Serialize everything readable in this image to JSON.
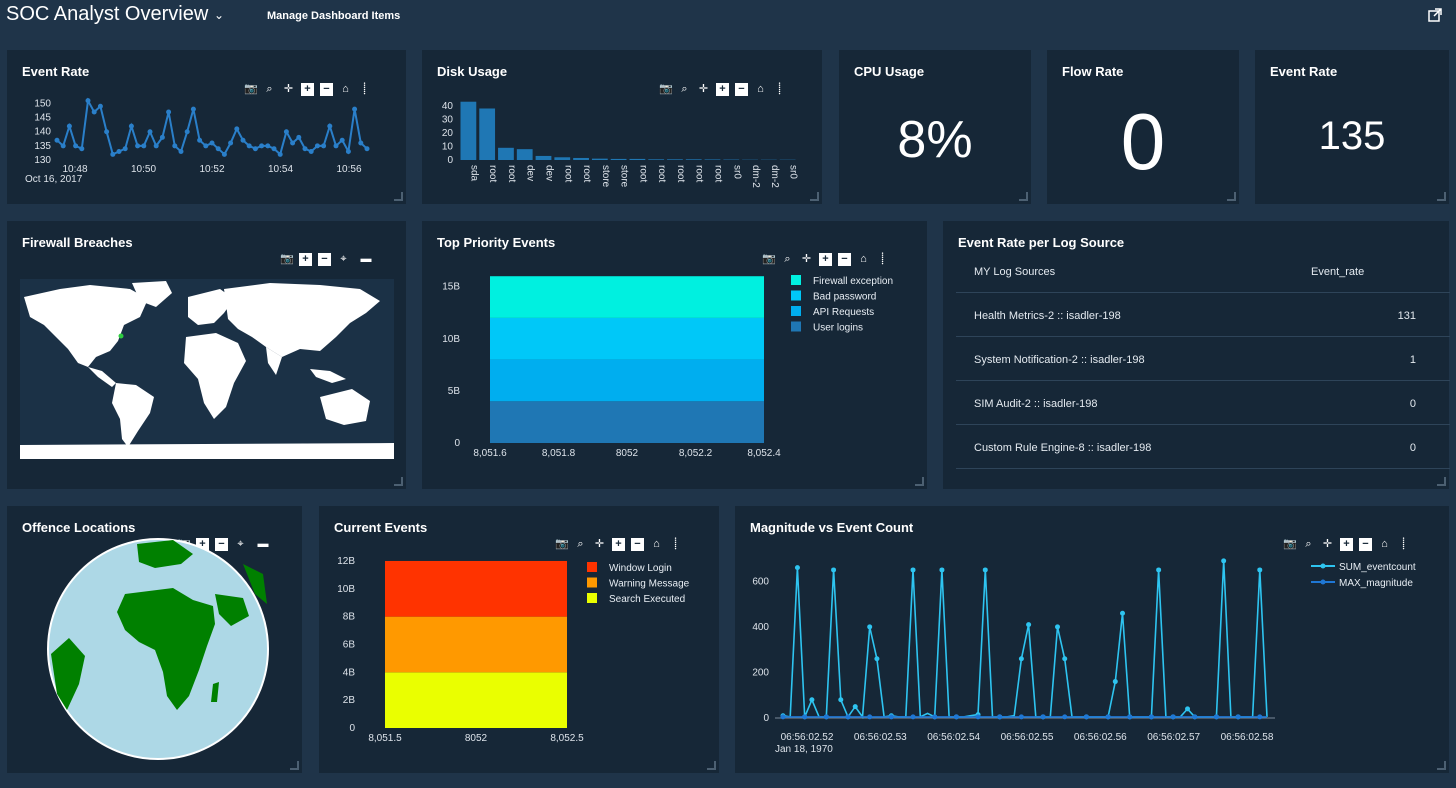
{
  "header": {
    "title": "SOC Analyst Overview",
    "manage_label": "Manage Dashboard Items"
  },
  "panels": {
    "event_rate": {
      "title": "Event Rate",
      "date_label": "Oct 16, 2017"
    },
    "disk_usage": {
      "title": "Disk Usage"
    },
    "cpu_usage": {
      "title": "CPU Usage",
      "value": "8%"
    },
    "flow_rate": {
      "title": "Flow Rate",
      "value": "0"
    },
    "event_rate_kpi": {
      "title": "Event Rate",
      "value": "135"
    },
    "firewall_breaches": {
      "title": "Firewall Breaches"
    },
    "top_priority_events": {
      "title": "Top Priority Events"
    },
    "event_rate_per_log_source": {
      "title": "Event Rate per Log Source",
      "columns": [
        "MY Log Sources",
        "Event_rate"
      ],
      "rows": [
        {
          "source": "Health Metrics-2 :: isadler-198",
          "rate": "131"
        },
        {
          "source": "System Notification-2 :: isadler-198",
          "rate": "1"
        },
        {
          "source": "SIM Audit-2 :: isadler-198",
          "rate": "0"
        },
        {
          "source": "Custom Rule Engine-8 :: isadler-198",
          "rate": "0"
        }
      ]
    },
    "offence_locations": {
      "title": "Offence Locations"
    },
    "current_events": {
      "title": "Current Events"
    },
    "magnitude_vs_event_count": {
      "title": "Magnitude vs Event Count",
      "date_label": "Jan 18, 1970"
    }
  },
  "icons": [
    "camera-icon",
    "zoom-icon",
    "pan-icon",
    "zoom-in-icon",
    "zoom-out-icon",
    "home-icon",
    "spike-icon",
    "reset-icon",
    "logo-icon"
  ],
  "colors": {
    "background": "#1f3449",
    "panel": "#162737",
    "line": "#2a7fc9",
    "cyan": "#00e5ff"
  },
  "chart_data": [
    {
      "id": "event_rate",
      "type": "line",
      "x": [
        0,
        1,
        2,
        3,
        4,
        5,
        6,
        7,
        8,
        9,
        10,
        11,
        12,
        13,
        14,
        15,
        16,
        17,
        18,
        19,
        20,
        21,
        22,
        23,
        24,
        25,
        26,
        27,
        28,
        29,
        30,
        31,
        32,
        33,
        34,
        35,
        36,
        37,
        38,
        39,
        40,
        41,
        42,
        43,
        44,
        45,
        46,
        47,
        48,
        49,
        50
      ],
      "values": [
        137,
        135,
        142,
        135,
        134,
        151,
        147,
        149,
        140,
        132,
        133,
        134,
        142,
        135,
        135,
        140,
        135,
        138,
        147,
        135,
        133,
        140,
        148,
        137,
        135,
        136,
        134,
        132,
        136,
        141,
        137,
        135,
        134,
        135,
        135,
        134,
        132,
        140,
        136,
        138,
        134,
        133,
        135,
        135,
        142,
        135,
        137,
        133,
        148,
        136,
        134
      ],
      "tick_labels_x": [
        "10:48",
        "10:50",
        "10:52",
        "10:54",
        "10:56"
      ],
      "ytick_labels": [
        "130",
        "135",
        "140",
        "145",
        "150"
      ],
      "ylim": [
        130,
        153
      ],
      "xlabel": "",
      "ylabel": ""
    },
    {
      "id": "disk_usage",
      "type": "bar",
      "categories": [
        "sda",
        "root",
        "root",
        "dev",
        "dev",
        "root",
        "root",
        "store",
        "store",
        "root",
        "root",
        "root",
        "root",
        "root",
        "sr0",
        "dm-2",
        "dm-2",
        "sr0"
      ],
      "values": [
        43,
        38,
        9,
        8,
        3,
        2,
        1.5,
        1,
        0.8,
        0.8,
        0.5,
        0.5,
        0.5,
        0.4,
        0.3,
        0.2,
        0.2,
        0.2
      ],
      "ytick_labels": [
        "0",
        "10",
        "20",
        "30",
        "40"
      ],
      "ylim": [
        0,
        45
      ]
    },
    {
      "id": "top_priority_events",
      "type": "bar",
      "stacked": true,
      "categories": [
        "8052"
      ],
      "xtick_labels": [
        "8,051.6",
        "8,051.8",
        "8052",
        "8,052.2",
        "8,052.4"
      ],
      "ytick_labels": [
        "0",
        "5B",
        "10B",
        "15B"
      ],
      "ylim": [
        0,
        16.5
      ],
      "series": [
        {
          "name": "User logins",
          "values": [
            4
          ],
          "color": "#1f77b4"
        },
        {
          "name": "API Requests",
          "values": [
            4
          ],
          "color": "#00aeef"
        },
        {
          "name": "Bad password",
          "values": [
            4
          ],
          "color": "#00c8f8"
        },
        {
          "name": "Firewall exception",
          "values": [
            4
          ],
          "color": "#00f0e0"
        }
      ]
    },
    {
      "id": "current_events",
      "type": "bar",
      "stacked": true,
      "categories": [
        "8052"
      ],
      "xtick_labels": [
        "8,051.5",
        "8052",
        "8,052.5"
      ],
      "ytick_labels": [
        "0",
        "2B",
        "4B",
        "6B",
        "8B",
        "10B",
        "12B"
      ],
      "ylim": [
        0,
        12.5
      ],
      "series": [
        {
          "name": "Search Executed",
          "values": [
            4
          ],
          "color": "#eaff00"
        },
        {
          "name": "Warning Message",
          "values": [
            4
          ],
          "color": "#ff9900"
        },
        {
          "name": "Window Login",
          "values": [
            4
          ],
          "color": "#ff3300"
        }
      ]
    },
    {
      "id": "magnitude_vs_event_count",
      "type": "line",
      "x": [
        0,
        1,
        2,
        3,
        4,
        5,
        6,
        7,
        8,
        9,
        10,
        11,
        12,
        13,
        14,
        15,
        16,
        17,
        18,
        19,
        20,
        21,
        22,
        23,
        24,
        25,
        26,
        27,
        28,
        29,
        30,
        31,
        32,
        33,
        34,
        35,
        36,
        37,
        38,
        39,
        40,
        41,
        42,
        43,
        44,
        45,
        46,
        47,
        48,
        49,
        50,
        51,
        52,
        53,
        54,
        55,
        56,
        57,
        58,
        59,
        60,
        61,
        62,
        63,
        64,
        65,
        66,
        67
      ],
      "tick_labels_x": [
        "06:56:02.52",
        "06:56:02.53",
        "06:56:02.54",
        "06:56:02.55",
        "06:56:02.56",
        "06:56:02.57",
        "06:56:02.58"
      ],
      "ytick_labels": [
        "0",
        "200",
        "400",
        "600"
      ],
      "ylim": [
        0,
        720
      ],
      "series": [
        {
          "name": "SUM_eventcount",
          "color": "#2ec4f0",
          "values": [
            10,
            5,
            660,
            5,
            80,
            5,
            5,
            650,
            80,
            5,
            50,
            5,
            400,
            260,
            5,
            10,
            5,
            5,
            650,
            5,
            20,
            5,
            650,
            5,
            5,
            5,
            10,
            15,
            650,
            5,
            5,
            5,
            10,
            260,
            410,
            5,
            5,
            5,
            400,
            260,
            5,
            5,
            5,
            5,
            5,
            5,
            160,
            460,
            5,
            5,
            5,
            5,
            650,
            5,
            5,
            5,
            40,
            5,
            5,
            5,
            5,
            690,
            5,
            5,
            5,
            5,
            650,
            5
          ]
        },
        {
          "name": "MAX_magnitude",
          "color": "#1f77d4",
          "values": [
            5,
            5,
            5,
            5,
            5,
            5,
            5,
            5,
            5,
            5,
            5,
            5,
            5,
            5,
            5,
            5,
            5,
            5,
            5,
            5,
            5,
            5,
            5,
            5,
            5,
            5,
            5,
            5,
            5,
            5,
            5,
            5,
            5,
            5,
            5,
            5,
            5,
            5,
            5,
            5,
            5,
            5,
            5,
            5,
            5,
            5,
            5,
            5,
            5,
            5,
            5,
            5,
            5,
            5,
            5,
            5,
            5,
            5,
            5,
            5,
            5,
            5,
            5,
            5,
            5,
            5,
            5,
            5
          ]
        }
      ]
    }
  ]
}
